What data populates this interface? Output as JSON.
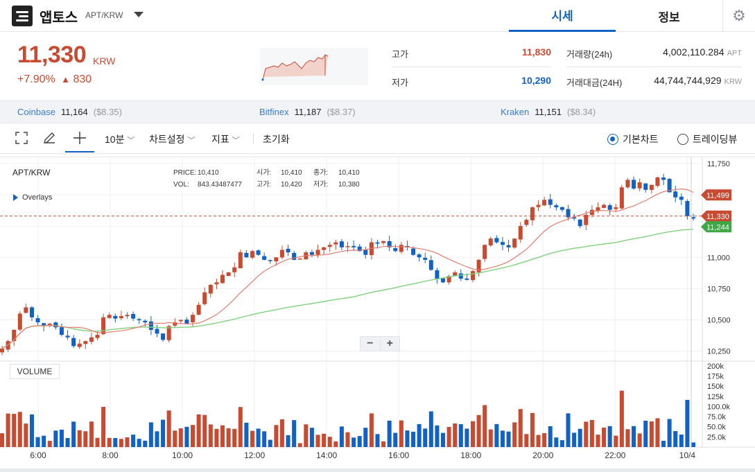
{
  "header": {
    "coin_name": "앱토스",
    "pair": "APT/KRW",
    "tab_price": "시세",
    "tab_info": "정보",
    "settings_icon": "gear-icon"
  },
  "summary": {
    "price": "11,330",
    "unit": "KRW",
    "change_pct": "+7.90%",
    "change_arrow": "▲",
    "change_abs": "830",
    "high_label": "고가",
    "high_value": "11,830",
    "low_label": "저가",
    "low_value": "10,290",
    "volume_label": "거래량(24h)",
    "volume_value": "4,002,110.284",
    "volume_unit": "APT",
    "amount_label": "거래대금(24H)",
    "amount_value": "44,744,744,929",
    "amount_unit": "KRW"
  },
  "colors": {
    "up": "#c84a31",
    "down": "#1261c4",
    "ma_short": "#e57a6a",
    "ma_long": "#7ed37c"
  },
  "exchanges": [
    {
      "name": "Coinbase",
      "price": "11,164",
      "usd": "($8.35)"
    },
    {
      "name": "Bitfinex",
      "price": "11,187",
      "usd": "($8.37)"
    },
    {
      "name": "Kraken",
      "price": "11,151",
      "usd": "($8.34)"
    }
  ],
  "toolbar": {
    "interval": "10분",
    "chart_settings": "차트설정",
    "indicators": "지표",
    "reset": "초기화",
    "basic_chart": "기본차트",
    "tradingview": "트레이딩뷰"
  },
  "chart_info": {
    "symbol": "APT/KRW",
    "price_label": "PRICE:",
    "price_value": "10,410",
    "vol_label": "VOL:",
    "vol_value": "843.43487477",
    "open_label": "시가:",
    "open_value": "10,410",
    "close_label": "종가:",
    "close_value": "10,410",
    "high_label": "고가:",
    "high_value": "10,420",
    "low_label": "저가:",
    "low_value": "10,380",
    "overlays": "Overlays",
    "volume_label": "VOLUME",
    "zoom_out": "−",
    "zoom_in": "+"
  },
  "chart_data": {
    "type": "candlestick",
    "y_ticks": [
      "11,750",
      "11,500",
      "11,250",
      "11,000",
      "10,750",
      "10,500",
      "10,250"
    ],
    "y_tick_values": [
      11750,
      11500,
      11250,
      11000,
      10750,
      10500,
      10250
    ],
    "ylim": [
      10170,
      11800
    ],
    "x_ticks": [
      "6:00",
      "8:00",
      "10:00",
      "12:00",
      "14:00",
      "16:00",
      "18:00",
      "20:00",
      "22:00",
      "10/4"
    ],
    "x_tick_minutes": [
      360,
      480,
      600,
      720,
      840,
      960,
      1080,
      1200,
      1320,
      1440
    ],
    "vol_ticks": [
      "200k",
      "175k",
      "150k",
      "125k",
      "100.0k",
      "75.0k",
      "50.0k",
      "25.0k"
    ],
    "vol_tick_values": [
      200000,
      175000,
      150000,
      125000,
      100000,
      75000,
      50000,
      25000
    ],
    "vol_max": 205000,
    "current_price": 11330,
    "price_tags": [
      {
        "label": "11,499",
        "value": 11499,
        "color": "#c84a31"
      },
      {
        "label": "11,330",
        "value": 11330,
        "color": "#c84a31"
      },
      {
        "label": "11,244",
        "value": 11244,
        "color": "#3fa846"
      }
    ],
    "grid": true,
    "candles_close": [
      10270,
      10330,
      10420,
      10550,
      10600,
      10520,
      10480,
      10450,
      10470,
      10440,
      10380,
      10360,
      10290,
      10310,
      10330,
      10360,
      10380,
      10520,
      10540,
      10510,
      10530,
      10540,
      10510,
      10500,
      10480,
      10420,
      10390,
      10340,
      10450,
      10480,
      10500,
      10470,
      10540,
      10620,
      10720,
      10780,
      10800,
      10860,
      10880,
      10920,
      11040,
      11000,
      11050,
      11020,
      10980,
      10970,
      11000,
      11060,
      11040,
      10980,
      10990,
      11040,
      11020,
      11060,
      11080,
      11100,
      11120,
      11080,
      11090,
      11080,
      11050,
      11020,
      11120,
      11110,
      11130,
      11080,
      11050,
      11100,
      11080,
      11020,
      11000,
      10980,
      10900,
      10830,
      10800,
      10850,
      10880,
      10830,
      10820,
      10890,
      10980,
      11100,
      11150,
      11120,
      11100,
      11080,
      11150,
      11250,
      11300,
      11400,
      11420,
      11460,
      11420,
      11400,
      11380,
      11320,
      11310,
      11250,
      11340,
      11380,
      11400,
      11420,
      11380,
      11400,
      11560,
      11620,
      11550,
      11600,
      11540,
      11580,
      11640,
      11620,
      11520,
      11480,
      11460,
      11330,
      11310
    ]
  }
}
